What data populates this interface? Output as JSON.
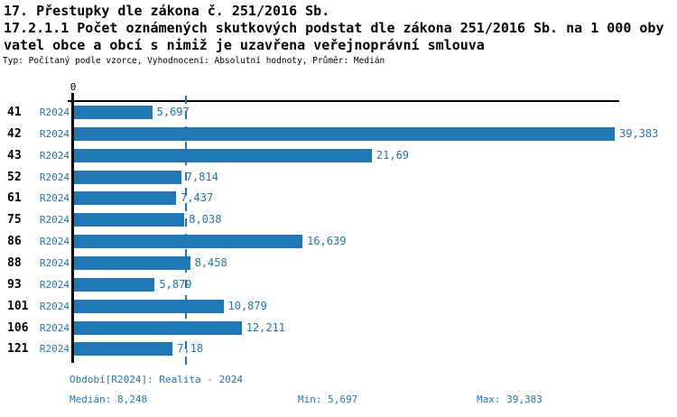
{
  "header": {
    "title_line1": "17. Přestupky dle zákona č. 251/2016 Sb.",
    "title_line2": "17.2.1.1 Počet oznámených skutkových podstat dle zákona 251/2016 Sb. na 1 000 oby",
    "title_line3": "vatel obce a obcí s nimiž je uzavřena veřejnoprávní smlouva",
    "meta_line": "Typ: Počítaný podle vzorce, Vyhodnocení: Absolutní hodnoty, Průměr: Medián"
  },
  "chart_data": {
    "type": "bar",
    "orientation": "horizontal",
    "title": "17. Přestupky dle zákona č. 251/2016 Sb.",
    "subtitle": "17.2.1.1 Počet oznámených skutkových podstat dle zákona 251/2016 Sb. na 1 000 obyvatel obce a obcí s nimiž je uzavřena veřejnoprávní smlouva",
    "categories": [
      "41",
      "42",
      "43",
      "52",
      "61",
      "75",
      "86",
      "88",
      "93",
      "101",
      "106",
      "121"
    ],
    "series": [
      {
        "name": "R2024",
        "values": [
          5.697,
          39.383,
          21.69,
          7.814,
          7.437,
          8.038,
          16.639,
          8.458,
          5.879,
          10.879,
          12.211,
          7.18
        ],
        "value_labels": [
          "5,697",
          "39,383",
          "21,69",
          "7,814",
          "7,437",
          "8,038",
          "16,639",
          "8,458",
          "5,879",
          "10,879",
          "12,211",
          "7,18"
        ]
      }
    ],
    "x_axis_zero_label": "0",
    "xlim": [
      0,
      39.383
    ],
    "median": 8.248,
    "grid": false,
    "legend_position": "none",
    "bar_color": "#1f77b4",
    "median_line_color": "#1f77b4",
    "label_color": "#1f77b4"
  },
  "footer": {
    "period_label": "Období[R2024]: Realita - 2024",
    "median_label": "Medián: 8,248",
    "min_label": "Min: 5,697",
    "max_label": "Max: 39,383"
  }
}
